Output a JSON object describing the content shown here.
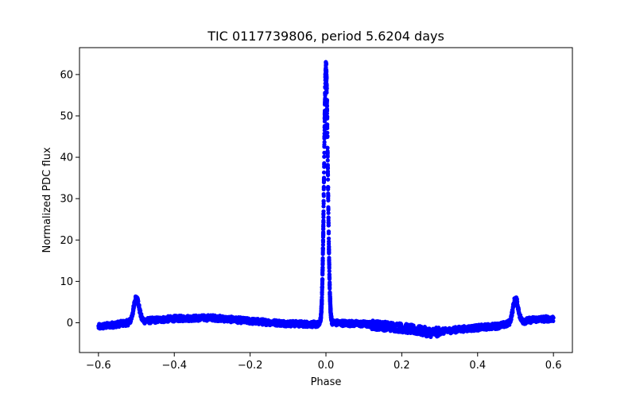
{
  "chart_data": {
    "type": "scatter",
    "title": "TIC 0117739806, period 5.6204 days",
    "xlabel": "Phase",
    "ylabel": "Normalized PDC flux",
    "xlim": [
      -0.65,
      0.65
    ],
    "ylim": [
      -7.2,
      66.5
    ],
    "xticks": [
      -0.6,
      -0.4,
      -0.2,
      0.0,
      0.2,
      0.4,
      0.6
    ],
    "xtick_labels": [
      "−0.6",
      "−0.4",
      "−0.2",
      "0.0",
      "0.2",
      "0.4",
      "0.6"
    ],
    "yticks": [
      0,
      10,
      20,
      30,
      40,
      50,
      60
    ],
    "ytick_labels": [
      "0",
      "10",
      "20",
      "30",
      "40",
      "50",
      "60"
    ],
    "grid": false,
    "series": [
      {
        "name": "PDC flux",
        "color": "#0000ff",
        "marker": "circle",
        "x_range": [
          -0.6,
          0.6
        ],
        "baseline_profile": {
          "x": [
            -0.6,
            -0.5,
            -0.4,
            -0.3,
            -0.2,
            -0.1,
            -0.02,
            0.02,
            0.1,
            0.2,
            0.28,
            0.35,
            0.45,
            0.55,
            0.6
          ],
          "y": [
            -1.0,
            0.3,
            1.0,
            1.2,
            0.4,
            -0.2,
            -0.4,
            0.0,
            -0.3,
            -1.2,
            -2.4,
            -1.6,
            -0.8,
            0.8,
            1.0
          ],
          "scatter": 0.7
        },
        "flares": [
          {
            "center": 0.0,
            "peak": 63.2,
            "width": 0.005
          },
          {
            "center": -0.5,
            "peak": 5.8,
            "width": 0.007
          },
          {
            "center": 0.5,
            "peak": 5.8,
            "width": 0.007
          }
        ]
      }
    ]
  }
}
